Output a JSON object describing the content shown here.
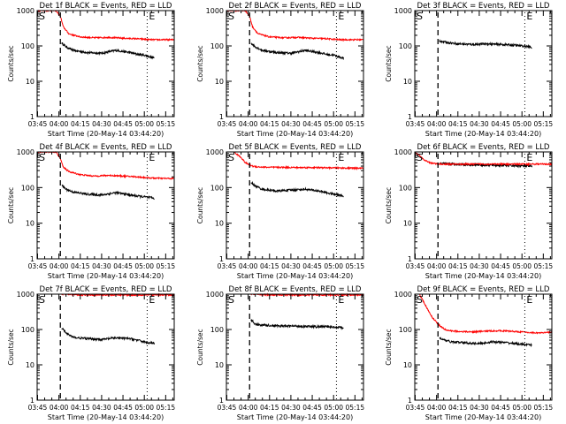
{
  "figure": {
    "x_ticks": [
      "03:45",
      "04:00",
      "04:15",
      "04:30",
      "04:45",
      "05:00",
      "05:15"
    ],
    "y_ticks": [
      "1",
      "10",
      "100",
      "1000"
    ],
    "ylabel": "Counts/sec",
    "xlabel": "Start Time (20-May-14 03:44:20)",
    "marker_S": "S",
    "marker_E": "E",
    "colors": {
      "events": "#000000",
      "lld": "#ff0000",
      "axis": "#000000",
      "background": "#ffffff"
    }
  },
  "chart_data": [
    {
      "type": "line",
      "title": "Det 1f BLACK = Events, RED = LLD",
      "x_range_min": [
        -0.3,
        96
      ],
      "ylim": [
        1,
        1000
      ],
      "y_scale": "log",
      "markers": {
        "S_dashed_min": 16,
        "E_dotted_min": 77
      },
      "series": [
        {
          "name": "Events",
          "color": "#000000",
          "x": [
            17,
            20,
            25,
            35,
            45,
            55,
            65,
            70,
            75,
            82
          ],
          "values": [
            120,
            95,
            75,
            65,
            62,
            75,
            65,
            58,
            55,
            45
          ]
        },
        {
          "name": "LLD",
          "color": "#ff0000",
          "x": [
            -0.3,
            5,
            10,
            13,
            16,
            18,
            22,
            30,
            40,
            50,
            60,
            70,
            80,
            90,
            96
          ],
          "values": [
            1000,
            1000,
            1000,
            1000,
            700,
            350,
            220,
            180,
            170,
            175,
            165,
            160,
            150,
            150,
            150
          ]
        }
      ]
    },
    {
      "type": "line",
      "title": "Det 2f BLACK = Events, RED = LLD",
      "x_range_min": [
        -0.3,
        96
      ],
      "ylim": [
        1,
        1000
      ],
      "y_scale": "log",
      "markers": {
        "S_dashed_min": 16,
        "E_dotted_min": 77
      },
      "series": [
        {
          "name": "Events",
          "color": "#000000",
          "x": [
            17,
            20,
            25,
            35,
            45,
            55,
            65,
            70,
            75,
            82
          ],
          "values": [
            120,
            95,
            75,
            65,
            62,
            75,
            65,
            58,
            55,
            45
          ]
        },
        {
          "name": "LLD",
          "color": "#ff0000",
          "x": [
            -0.3,
            5,
            10,
            13,
            16,
            18,
            22,
            30,
            40,
            50,
            60,
            70,
            80,
            90,
            96
          ],
          "values": [
            1000,
            1000,
            1000,
            1000,
            700,
            350,
            220,
            180,
            170,
            175,
            165,
            160,
            150,
            150,
            150
          ]
        }
      ]
    },
    {
      "type": "line",
      "title": "Det 3f BLACK = Events, RED = LLD",
      "x_range_min": [
        -0.3,
        96
      ],
      "ylim": [
        1,
        1000
      ],
      "y_scale": "log",
      "markers": {
        "S_dashed_min": 16,
        "E_dotted_min": 77
      },
      "series": [
        {
          "name": "Events",
          "color": "#000000",
          "x": [
            17,
            20,
            30,
            40,
            50,
            60,
            70,
            80,
            82
          ],
          "values": [
            140,
            130,
            115,
            110,
            115,
            110,
            105,
            95,
            90
          ]
        }
      ]
    },
    {
      "type": "line",
      "title": "Det 4f BLACK = Events, RED = LLD",
      "x_range_min": [
        -0.3,
        96
      ],
      "ylim": [
        1,
        1000
      ],
      "y_scale": "log",
      "markers": {
        "S_dashed_min": 16,
        "E_dotted_min": 77
      },
      "series": [
        {
          "name": "Events",
          "color": "#000000",
          "x": [
            17,
            20,
            25,
            35,
            45,
            55,
            65,
            70,
            75,
            82
          ],
          "values": [
            115,
            90,
            75,
            65,
            62,
            72,
            62,
            58,
            55,
            50
          ]
        },
        {
          "name": "LLD",
          "color": "#ff0000",
          "x": [
            -0.3,
            5,
            10,
            13,
            16,
            18,
            22,
            30,
            40,
            50,
            60,
            70,
            80,
            90,
            96
          ],
          "values": [
            1000,
            1000,
            1000,
            1000,
            650,
            380,
            280,
            230,
            210,
            220,
            210,
            200,
            185,
            180,
            180
          ]
        }
      ]
    },
    {
      "type": "line",
      "title": "Det 5f BLACK = Events, RED = LLD",
      "x_range_min": [
        -0.3,
        96
      ],
      "ylim": [
        1,
        1000
      ],
      "y_scale": "log",
      "markers": {
        "S_dashed_min": 16,
        "E_dotted_min": 77
      },
      "series": [
        {
          "name": "Events",
          "color": "#000000",
          "x": [
            17,
            20,
            25,
            35,
            45,
            55,
            65,
            70,
            75,
            82
          ],
          "values": [
            140,
            110,
            90,
            80,
            85,
            90,
            80,
            72,
            65,
            58
          ]
        },
        {
          "name": "LLD",
          "color": "#ff0000",
          "x": [
            5,
            10,
            13,
            16,
            18,
            22,
            30,
            40,
            50,
            60,
            70,
            80,
            90,
            96
          ],
          "values": [
            1000,
            700,
            500,
            430,
            400,
            380,
            370,
            370,
            365,
            365,
            360,
            355,
            350,
            350
          ]
        }
      ]
    },
    {
      "type": "line",
      "title": "Det 6f BLACK = Events, RED = LLD",
      "x_range_min": [
        -0.3,
        96
      ],
      "ylim": [
        1,
        1000
      ],
      "y_scale": "log",
      "markers": {
        "S_dashed_min": 16,
        "E_dotted_min": 77
      },
      "series": [
        {
          "name": "Events",
          "color": "#000000",
          "x": [
            17,
            20,
            30,
            40,
            50,
            60,
            70,
            80,
            82
          ],
          "values": [
            460,
            470,
            455,
            440,
            430,
            420,
            410,
            400,
            390
          ]
        },
        {
          "name": "LLD",
          "color": "#ff0000",
          "x": [
            -0.3,
            3,
            6,
            9,
            12,
            16,
            20,
            30,
            40,
            50,
            60,
            70,
            80,
            90,
            96
          ],
          "values": [
            1000,
            800,
            600,
            520,
            480,
            460,
            455,
            455,
            455,
            455,
            455,
            455,
            455,
            455,
            455
          ]
        }
      ]
    },
    {
      "type": "line",
      "title": "Det 7f BLACK = Events, RED = LLD",
      "x_range_min": [
        -0.3,
        96
      ],
      "ylim": [
        1,
        1000
      ],
      "y_scale": "log",
      "markers": {
        "S_dashed_min": 16,
        "E_dotted_min": 77
      },
      "series": [
        {
          "name": "Events",
          "color": "#000000",
          "x": [
            17,
            20,
            25,
            35,
            45,
            55,
            65,
            70,
            75,
            82
          ],
          "values": [
            110,
            80,
            60,
            55,
            52,
            58,
            55,
            50,
            45,
            40
          ]
        },
        {
          "name": "LLD",
          "color": "#ff0000",
          "x": [
            17,
            20,
            30,
            40,
            50,
            60,
            70,
            80,
            90,
            96
          ],
          "values": [
            1000,
            1000,
            950,
            950,
            950,
            950,
            950,
            950,
            950,
            950
          ]
        }
      ]
    },
    {
      "type": "line",
      "title": "Det 8f BLACK = Events, RED = LLD",
      "x_range_min": [
        -0.3,
        96
      ],
      "ylim": [
        1,
        1000
      ],
      "y_scale": "log",
      "markers": {
        "S_dashed_min": 16,
        "E_dotted_min": 77
      },
      "series": [
        {
          "name": "Events",
          "color": "#000000",
          "x": [
            17,
            20,
            30,
            40,
            50,
            60,
            70,
            80,
            82
          ],
          "values": [
            190,
            140,
            130,
            125,
            125,
            120,
            120,
            115,
            110
          ]
        },
        {
          "name": "LLD",
          "color": "#ff0000",
          "x": [
            17,
            20,
            30,
            40,
            50,
            60,
            70,
            80,
            90,
            96
          ],
          "values": [
            1000,
            1000,
            950,
            950,
            950,
            950,
            950,
            950,
            950,
            950
          ]
        }
      ]
    },
    {
      "type": "line",
      "title": "Det 9f BLACK = Events, RED = LLD",
      "x_range_min": [
        -0.3,
        96
      ],
      "ylim": [
        1,
        1000
      ],
      "y_scale": "log",
      "markers": {
        "S_dashed_min": 16,
        "E_dotted_min": 77
      },
      "series": [
        {
          "name": "Events",
          "color": "#000000",
          "x": [
            17,
            20,
            25,
            35,
            45,
            55,
            65,
            70,
            75,
            82
          ],
          "values": [
            60,
            50,
            45,
            42,
            40,
            45,
            42,
            40,
            38,
            36
          ]
        },
        {
          "name": "LLD",
          "color": "#ff0000",
          "x": [
            3,
            6,
            9,
            12,
            15,
            18,
            22,
            30,
            40,
            50,
            60,
            70,
            80,
            90,
            96
          ],
          "values": [
            1000,
            600,
            350,
            220,
            160,
            120,
            95,
            88,
            85,
            90,
            92,
            88,
            82,
            80,
            85
          ]
        }
      ]
    }
  ]
}
